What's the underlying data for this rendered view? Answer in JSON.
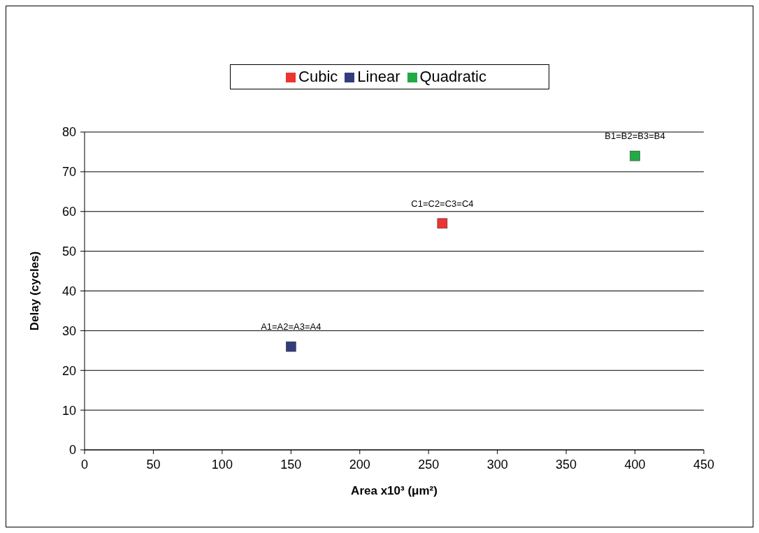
{
  "chart_data": {
    "type": "scatter",
    "xlabel": "Area x10³ (μm²)",
    "ylabel": "Delay (cycles)",
    "series": [
      {
        "name": "Linear",
        "color": "#333d7a",
        "x": [
          150
        ],
        "values": [
          26
        ]
      },
      {
        "name": "Quadratic",
        "color": "#22aa44",
        "x": [
          400
        ],
        "values": [
          74
        ]
      },
      {
        "name": "Cubic",
        "color": "#ee3333",
        "x": [
          260
        ],
        "values": [
          57
        ]
      }
    ],
    "annotations": [
      {
        "text": "A1=A2=A3=A4",
        "x": 150,
        "y": 26
      },
      {
        "text": "B1=B2=B3=B4",
        "x": 400,
        "y": 74
      },
      {
        "text": "C1=C2=C3=C4",
        "x": 260,
        "y": 57
      }
    ],
    "xlim": [
      0,
      450
    ],
    "xticks": [
      0,
      50,
      100,
      150,
      200,
      250,
      300,
      350,
      400,
      450
    ],
    "ylim": [
      0,
      80
    ],
    "yticks": [
      0,
      10,
      20,
      30,
      40,
      50,
      60,
      70,
      80
    ],
    "grid": "y",
    "legend": "top",
    "marker": "square"
  }
}
